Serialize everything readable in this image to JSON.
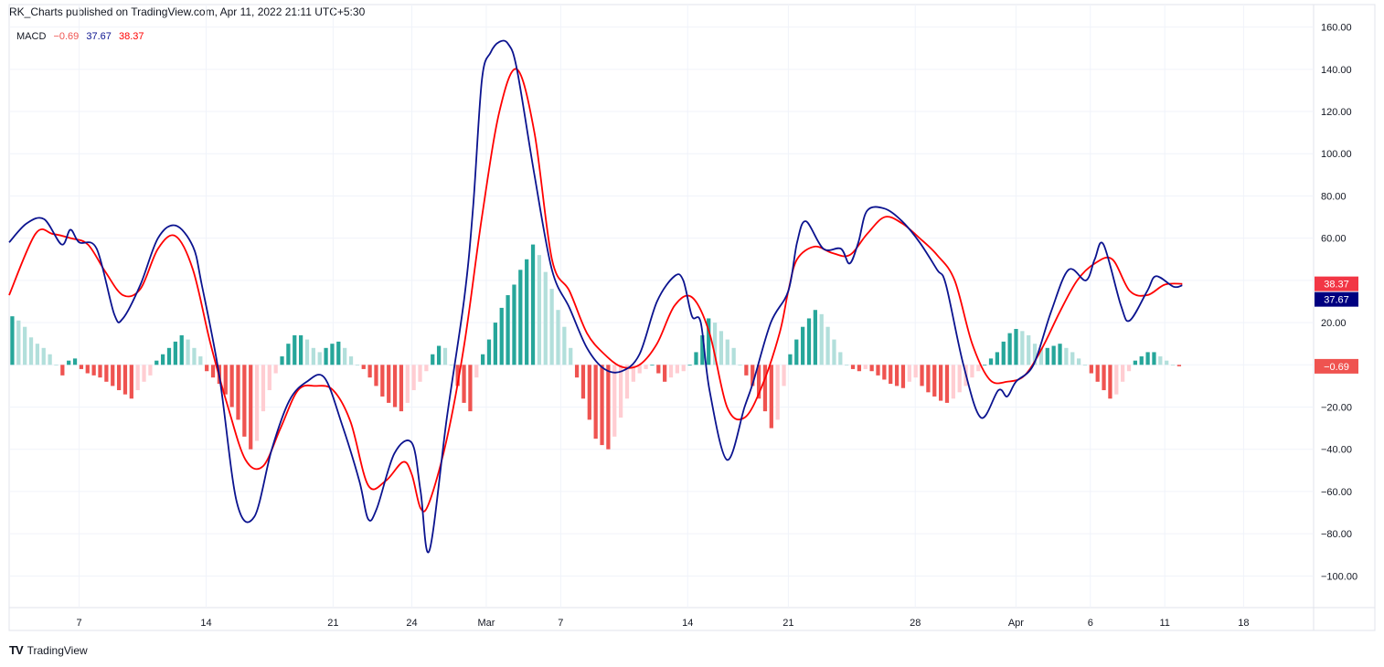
{
  "header": {
    "published": "RK_Charts published on TradingView.com, Apr 11, 2022 21:11 UTC+5:30"
  },
  "legend": {
    "name": "MACD",
    "hist": "−0.69",
    "macd": "37.67",
    "signal": "38.37"
  },
  "footer": {
    "brand": "TradingView"
  },
  "badges": [
    {
      "text": "38.37",
      "value": 38.37,
      "color": "#f23645"
    },
    {
      "text": "37.67",
      "value": 37.67,
      "color": "#000080"
    },
    {
      "text": "−0.69",
      "value": -0.69,
      "color": "#ef5350"
    }
  ],
  "colors": {
    "macd": "#0b138f",
    "signal": "#ff0000",
    "hist_up_strong": "#26a69a",
    "hist_up_weak": "#b2dfdb",
    "hist_down_strong": "#ef5350",
    "hist_down_weak": "#ffcdd2"
  },
  "chart_data": {
    "type": "line",
    "ylim": [
      -115,
      162
    ],
    "xlim": [
      0,
      149
    ],
    "yticks": [
      "160.00",
      "140.00",
      "120.00",
      "100.00",
      "80.00",
      "60.00",
      "40.00",
      "20.00",
      "",
      "−20.00",
      "−40.00",
      "−60.00",
      "−80.00",
      "−100.00"
    ],
    "ytick_values": [
      160,
      140,
      120,
      100,
      80,
      60,
      40,
      20,
      0,
      -20,
      -40,
      -60,
      -80,
      -100
    ],
    "xticks": [
      {
        "label": "7",
        "x": 8
      },
      {
        "label": "14",
        "x": 22.5
      },
      {
        "label": "21",
        "x": 37
      },
      {
        "label": "24",
        "x": 46
      },
      {
        "label": "Mar",
        "x": 54.5
      },
      {
        "label": "7",
        "x": 63
      },
      {
        "label": "14",
        "x": 77.5
      },
      {
        "label": "21",
        "x": 89
      },
      {
        "label": "28",
        "x": 103.5
      },
      {
        "label": "Apr",
        "x": 115
      },
      {
        "label": "6",
        "x": 123.5
      },
      {
        "label": "11",
        "x": 132
      },
      {
        "label": "18",
        "x": 141
      }
    ],
    "grid": true,
    "series": [
      {
        "name": "MACD",
        "points": [
          [
            0,
            58
          ],
          [
            2,
            67
          ],
          [
            4,
            69
          ],
          [
            6,
            57
          ],
          [
            7,
            64
          ],
          [
            8,
            58
          ],
          [
            10,
            55
          ],
          [
            12,
            24
          ],
          [
            13,
            22
          ],
          [
            15,
            38
          ],
          [
            17,
            60
          ],
          [
            19,
            66
          ],
          [
            21,
            56
          ],
          [
            22,
            38
          ],
          [
            24,
            -5
          ],
          [
            26,
            -65
          ],
          [
            28,
            -72
          ],
          [
            30,
            -40
          ],
          [
            32,
            -17
          ],
          [
            34,
            -8
          ],
          [
            36,
            -6
          ],
          [
            38,
            -28
          ],
          [
            40,
            -55
          ],
          [
            41,
            -73
          ],
          [
            42,
            -68
          ],
          [
            44,
            -42
          ],
          [
            46,
            -37
          ],
          [
            47,
            -60
          ],
          [
            48,
            -88
          ],
          [
            50,
            -25
          ],
          [
            52,
            32
          ],
          [
            53,
            75
          ],
          [
            54,
            135
          ],
          [
            55,
            148
          ],
          [
            56,
            153
          ],
          [
            57,
            152
          ],
          [
            58,
            140
          ],
          [
            60,
            90
          ],
          [
            62,
            45
          ],
          [
            64,
            27
          ],
          [
            66,
            8
          ],
          [
            68,
            -2
          ],
          [
            70,
            -3
          ],
          [
            72,
            5
          ],
          [
            74,
            30
          ],
          [
            76,
            42
          ],
          [
            77,
            40
          ],
          [
            78,
            23
          ],
          [
            79,
            20
          ],
          [
            80,
            -12
          ],
          [
            82,
            -45
          ],
          [
            84,
            -20
          ],
          [
            85,
            -8
          ],
          [
            87,
            20
          ],
          [
            89,
            35
          ],
          [
            90,
            58
          ],
          [
            91,
            68
          ],
          [
            93,
            55
          ],
          [
            95,
            55
          ],
          [
            96,
            48
          ],
          [
            97,
            58
          ],
          [
            98,
            73
          ],
          [
            100,
            74
          ],
          [
            102,
            68
          ],
          [
            104,
            58
          ],
          [
            106,
            45
          ],
          [
            107,
            38
          ],
          [
            109,
            0
          ],
          [
            111,
            -25
          ],
          [
            113,
            -12
          ],
          [
            114,
            -15
          ],
          [
            115,
            -8
          ],
          [
            117,
            0
          ],
          [
            119,
            25
          ],
          [
            121,
            45
          ],
          [
            123,
            40
          ],
          [
            124,
            50
          ],
          [
            125,
            57
          ],
          [
            127,
            28
          ],
          [
            128,
            21
          ],
          [
            130,
            35
          ],
          [
            131,
            42
          ],
          [
            133,
            37
          ],
          [
            134,
            37.67
          ]
        ]
      },
      {
        "name": "Signal",
        "points": [
          [
            0,
            33
          ],
          [
            3,
            62
          ],
          [
            5,
            62
          ],
          [
            7,
            60
          ],
          [
            9,
            57
          ],
          [
            11,
            44
          ],
          [
            13,
            33
          ],
          [
            15,
            36
          ],
          [
            17,
            55
          ],
          [
            19,
            61
          ],
          [
            21,
            45
          ],
          [
            23,
            10
          ],
          [
            25,
            -20
          ],
          [
            27,
            -45
          ],
          [
            29,
            -48
          ],
          [
            31,
            -30
          ],
          [
            33,
            -12
          ],
          [
            35,
            -10
          ],
          [
            37,
            -12
          ],
          [
            39,
            -27
          ],
          [
            41,
            -57
          ],
          [
            43,
            -55
          ],
          [
            45,
            -46
          ],
          [
            46,
            -52
          ],
          [
            47,
            -68
          ],
          [
            48,
            -65
          ],
          [
            50,
            -35
          ],
          [
            52,
            10
          ],
          [
            54,
            70
          ],
          [
            56,
            120
          ],
          [
            58,
            140
          ],
          [
            60,
            110
          ],
          [
            62,
            50
          ],
          [
            64,
            35
          ],
          [
            66,
            15
          ],
          [
            68,
            5
          ],
          [
            70,
            -1
          ],
          [
            72,
            0
          ],
          [
            74,
            10
          ],
          [
            76,
            28
          ],
          [
            78,
            32
          ],
          [
            80,
            15
          ],
          [
            82,
            -20
          ],
          [
            84,
            -25
          ],
          [
            86,
            -10
          ],
          [
            88,
            15
          ],
          [
            89,
            35
          ],
          [
            90,
            50
          ],
          [
            92,
            56
          ],
          [
            94,
            53
          ],
          [
            96,
            52
          ],
          [
            98,
            62
          ],
          [
            100,
            70
          ],
          [
            102,
            67
          ],
          [
            104,
            60
          ],
          [
            106,
            52
          ],
          [
            108,
            40
          ],
          [
            110,
            10
          ],
          [
            112,
            -7
          ],
          [
            114,
            -8
          ],
          [
            116,
            -5
          ],
          [
            118,
            8
          ],
          [
            120,
            25
          ],
          [
            122,
            40
          ],
          [
            124,
            48
          ],
          [
            126,
            50
          ],
          [
            128,
            35
          ],
          [
            130,
            33
          ],
          [
            132,
            38
          ],
          [
            134,
            38.37
          ]
        ]
      }
    ],
    "histogram": [
      23,
      21,
      18,
      13,
      10,
      8,
      5,
      0,
      -5,
      2,
      3,
      -2,
      -4,
      -5,
      -6,
      -8,
      -10,
      -12,
      -14,
      -16,
      -12,
      -8,
      -5,
      2,
      5,
      8,
      11,
      14,
      12,
      8,
      4,
      -3,
      -6,
      -9,
      -14,
      -20,
      -26,
      -34,
      -40,
      -36,
      -22,
      -12,
      -4,
      4,
      10,
      14,
      14,
      12,
      8,
      6,
      8,
      10,
      11,
      8,
      4,
      0,
      -2,
      -6,
      -10,
      -15,
      -18,
      -20,
      -22,
      -18,
      -12,
      -8,
      -3,
      5,
      9,
      8,
      0,
      -10,
      -18,
      -22,
      -6,
      5,
      12,
      20,
      27,
      33,
      38,
      45,
      50,
      57,
      52,
      44,
      36,
      26,
      18,
      8,
      -6,
      -16,
      -26,
      -35,
      -38,
      -40,
      -34,
      -25,
      -16,
      -8,
      -4,
      -2,
      0,
      -4,
      -8,
      -6,
      -4,
      -3,
      0,
      6,
      14,
      22,
      20,
      16,
      12,
      8,
      0,
      -5,
      -10,
      -16,
      -22,
      -30,
      -26,
      -10,
      5,
      12,
      18,
      22,
      26,
      24,
      18,
      12,
      6,
      0,
      -2,
      -3,
      -2,
      -3,
      -5,
      -7,
      -9,
      -10,
      -11,
      -8,
      -6,
      -10,
      -13,
      -15,
      -17,
      -18,
      -16,
      -13,
      -10,
      -6,
      -3,
      0,
      3,
      6,
      11,
      15,
      17,
      16,
      14,
      10,
      8,
      8,
      9,
      10,
      8,
      6,
      3,
      0,
      -4,
      -8,
      -12,
      -16,
      -14,
      -8,
      -3,
      2,
      4,
      6,
      6,
      4,
      2,
      0,
      -0.69
    ]
  }
}
